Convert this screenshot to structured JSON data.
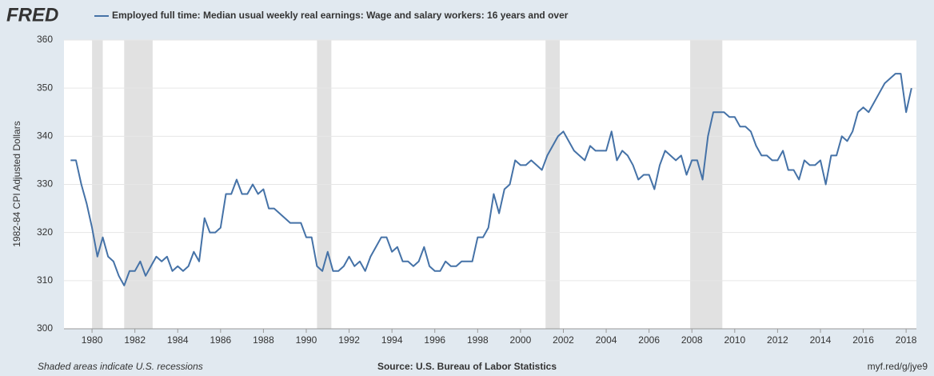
{
  "chart_data": {
    "type": "line",
    "logo": "FRED",
    "title": "Employed full time: Median usual weekly real earnings: Wage and salary workers: 16 years and over",
    "y_label": "1982-84 CPI Adjusted Dollars",
    "note": "Shaded areas indicate U.S. recessions",
    "source": "Source: U.S. Bureau of Labor Statistics",
    "link": "myf.red/g/jye9",
    "xlim": [
      1978.69,
      2018.48
    ],
    "ylim": [
      300,
      360
    ],
    "xticks": [
      1980,
      1982,
      1984,
      1986,
      1988,
      1990,
      1992,
      1994,
      1996,
      1998,
      2000,
      2002,
      2004,
      2006,
      2008,
      2010,
      2012,
      2014,
      2016,
      2018
    ],
    "yticks": [
      300,
      310,
      320,
      330,
      340,
      350,
      360
    ],
    "grid": true,
    "recession_color": "#e1e1e1",
    "recessions": [
      [
        1980.0,
        1980.5
      ],
      [
        1981.5,
        1982.83
      ],
      [
        1990.5,
        1991.17
      ],
      [
        2001.17,
        2001.83
      ],
      [
        2007.92,
        2009.42
      ]
    ],
    "x": [
      1979,
      1979.25,
      1979.5,
      1979.75,
      1980,
      1980.25,
      1980.5,
      1980.75,
      1981,
      1981.25,
      1981.5,
      1981.75,
      1982,
      1982.25,
      1982.5,
      1982.75,
      1983,
      1983.25,
      1983.5,
      1983.75,
      1984,
      1984.25,
      1984.5,
      1984.75,
      1985,
      1985.25,
      1985.5,
      1985.75,
      1986,
      1986.25,
      1986.5,
      1986.75,
      1987,
      1987.25,
      1987.5,
      1987.75,
      1988,
      1988.25,
      1988.5,
      1988.75,
      1989,
      1989.25,
      1989.5,
      1989.75,
      1990,
      1990.25,
      1990.5,
      1990.75,
      1991,
      1991.25,
      1991.5,
      1991.75,
      1992,
      1992.25,
      1992.5,
      1992.75,
      1993,
      1993.25,
      1993.5,
      1993.75,
      1994,
      1994.25,
      1994.5,
      1994.75,
      1995,
      1995.25,
      1995.5,
      1995.75,
      1996,
      1996.25,
      1996.5,
      1996.75,
      1997,
      1997.25,
      1997.5,
      1997.75,
      1998,
      1998.25,
      1998.5,
      1998.75,
      1999,
      1999.25,
      1999.5,
      1999.75,
      2000,
      2000.25,
      2000.5,
      2000.75,
      2001,
      2001.25,
      2001.5,
      2001.75,
      2002,
      2002.25,
      2002.5,
      2002.75,
      2003,
      2003.25,
      2003.5,
      2003.75,
      2004,
      2004.25,
      2004.5,
      2004.75,
      2005,
      2005.25,
      2005.5,
      2005.75,
      2006,
      2006.25,
      2006.5,
      2006.75,
      2007,
      2007.25,
      2007.5,
      2007.75,
      2008,
      2008.25,
      2008.5,
      2008.75,
      2009,
      2009.25,
      2009.5,
      2009.75,
      2010,
      2010.25,
      2010.5,
      2010.75,
      2011,
      2011.25,
      2011.5,
      2011.75,
      2012,
      2012.25,
      2012.5,
      2012.75,
      2013,
      2013.25,
      2013.5,
      2013.75,
      2014,
      2014.25,
      2014.5,
      2014.75,
      2015,
      2015.25,
      2015.5,
      2015.75,
      2016,
      2016.25,
      2016.5,
      2016.75,
      2017,
      2017.25,
      2017.5,
      2017.75,
      2018,
      2018.25
    ],
    "series": [
      {
        "name": "Employed full time: Median usual weekly real earnings: Wage and salary workers: 16 years and over",
        "color": "#4572a7",
        "values": [
          335,
          335,
          330,
          326,
          321,
          315,
          319,
          315,
          314,
          311,
          309,
          312,
          312,
          314,
          311,
          313,
          315,
          314,
          315,
          312,
          313,
          312,
          313,
          316,
          314,
          323,
          320,
          320,
          321,
          328,
          328,
          331,
          328,
          328,
          330,
          328,
          329,
          325,
          325,
          324,
          323,
          322,
          322,
          322,
          319,
          319,
          313,
          312,
          316,
          312,
          312,
          313,
          315,
          313,
          314,
          312,
          315,
          317,
          319,
          319,
          316,
          317,
          314,
          314,
          313,
          314,
          317,
          313,
          312,
          312,
          314,
          313,
          313,
          314,
          314,
          314,
          319,
          319,
          321,
          328,
          324,
          329,
          330,
          335,
          334,
          334,
          335,
          334,
          333,
          336,
          338,
          340,
          341,
          339,
          337,
          336,
          335,
          338,
          337,
          337,
          337,
          341,
          335,
          337,
          336,
          334,
          331,
          332,
          332,
          329,
          334,
          337,
          336,
          335,
          336,
          332,
          335,
          335,
          331,
          340,
          345,
          345,
          345,
          344,
          344,
          342,
          342,
          341,
          338,
          336,
          336,
          335,
          335,
          337,
          333,
          333,
          331,
          335,
          334,
          334,
          335,
          330,
          336,
          336,
          340,
          339,
          341,
          345,
          346,
          345,
          347,
          349,
          351,
          352,
          353,
          353,
          345,
          350
        ]
      }
    ]
  }
}
